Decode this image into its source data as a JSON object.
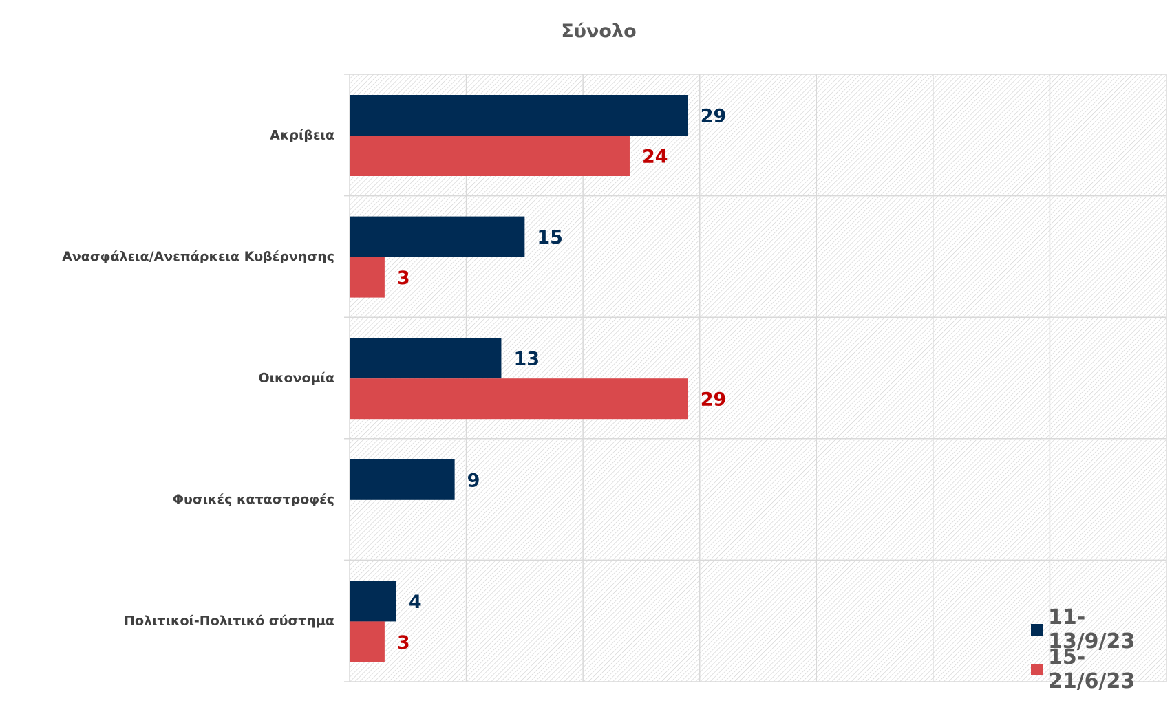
{
  "chart_data": {
    "type": "bar",
    "orientation": "horizontal",
    "title": "Σύνολο",
    "categories": [
      "Ακρίβεια",
      "Ανασφάλεια/Ανεπάρκεια Κυβέρνησης",
      "Οικονομία",
      "Φυσικές καταστροφές",
      "Πολιτικοί-Πολιτικό σύστημα"
    ],
    "series": [
      {
        "name": "11-13/9/23",
        "values": [
          29,
          15,
          13,
          9,
          4
        ],
        "color": "#002b54"
      },
      {
        "name": "15-21/6/23",
        "values": [
          24,
          3,
          29,
          null,
          3
        ],
        "color": "#c00000",
        "bar_color": "#d9494c"
      }
    ],
    "xlim": [
      0,
      70
    ],
    "grid": true,
    "legend_position": "bottom-right",
    "data_labels": true
  }
}
